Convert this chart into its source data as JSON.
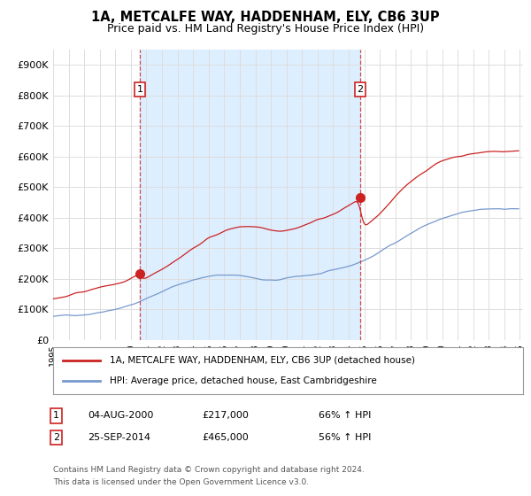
{
  "title": "1A, METCALFE WAY, HADDENHAM, ELY, CB6 3UP",
  "subtitle": "Price paid vs. HM Land Registry's House Price Index (HPI)",
  "title_fontsize": 10.5,
  "subtitle_fontsize": 9,
  "ylabel_ticks": [
    "£0",
    "£100K",
    "£200K",
    "£300K",
    "£400K",
    "£500K",
    "£600K",
    "£700K",
    "£800K",
    "£900K"
  ],
  "ytick_values": [
    0,
    100000,
    200000,
    300000,
    400000,
    500000,
    600000,
    700000,
    800000,
    900000
  ],
  "ylim": [
    0,
    950000
  ],
  "xlim_start": 1995.0,
  "xlim_end": 2025.2,
  "background_color": "#ffffff",
  "plot_bg_color": "#ffffff",
  "shaded_region_color": "#ddeeff",
  "grid_color": "#dddddd",
  "line_color_red": "#cc2222",
  "line_color_blue": "#7799cc",
  "marker1_x": 2000.58,
  "marker1_y": 217000,
  "marker2_x": 2014.73,
  "marker2_y": 465000,
  "marker1_label": "1",
  "marker2_label": "2",
  "dashed_x1": 2000.58,
  "dashed_x2": 2014.73,
  "legend_line1": "1A, METCALFE WAY, HADDENHAM, ELY, CB6 3UP (detached house)",
  "legend_line2": "HPI: Average price, detached house, East Cambridgeshire",
  "ann1_num": "1",
  "ann1_date": "04-AUG-2000",
  "ann1_price": "£217,000",
  "ann1_hpi": "66% ↑ HPI",
  "ann2_num": "2",
  "ann2_date": "25-SEP-2014",
  "ann2_price": "£465,000",
  "ann2_hpi": "56% ↑ HPI",
  "footer": "Contains HM Land Registry data © Crown copyright and database right 2024.\nThis data is licensed under the Open Government Licence v3.0."
}
